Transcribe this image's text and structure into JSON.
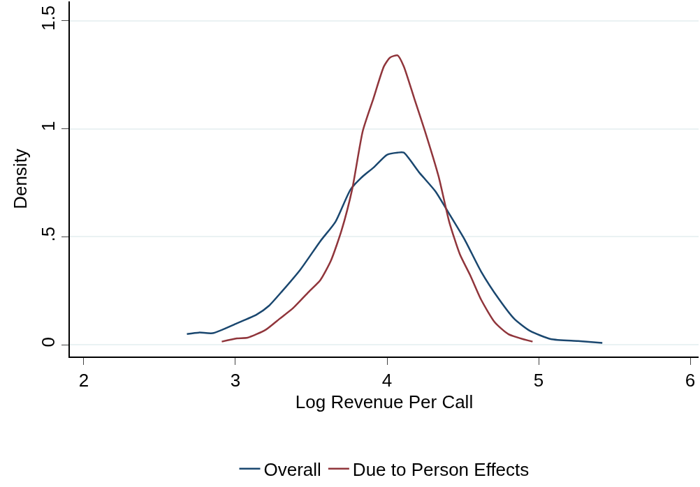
{
  "chart_data": {
    "type": "line",
    "xlabel": "Log Revenue Per Call",
    "ylabel": "Density",
    "xlim": [
      1.908,
      6.055
    ],
    "xticks": [
      2,
      3,
      4,
      5,
      6
    ],
    "ylim": [
      -0.054,
      1.59
    ],
    "yticks": [
      0,
      {
        "value": 0.5,
        "label": ".5"
      },
      1,
      1.5
    ],
    "grid": "y",
    "legend": "bottom",
    "line_style": "solid",
    "marker": "none",
    "series": [
      {
        "name": "Overall",
        "color": "#1a476f",
        "x": [
          2.68,
          2.76,
          2.85,
          3.01,
          3.14,
          3.22,
          3.31,
          3.43,
          3.56,
          3.66,
          3.76,
          3.84,
          3.91,
          4.0,
          4.07,
          4.11,
          4.21,
          4.32,
          4.39,
          4.51,
          4.62,
          4.74,
          4.84,
          4.94,
          5.08,
          5.26,
          5.42
        ],
        "values": [
          0.05,
          0.057,
          0.054,
          0.1,
          0.14,
          0.18,
          0.25,
          0.35,
          0.48,
          0.57,
          0.72,
          0.78,
          0.82,
          0.88,
          0.89,
          0.89,
          0.8,
          0.71,
          0.63,
          0.49,
          0.34,
          0.21,
          0.12,
          0.066,
          0.027,
          0.018,
          0.009
        ]
      },
      {
        "name": "Due to Person Effects",
        "color": "#90353b",
        "x": [
          2.91,
          3.01,
          3.08,
          3.2,
          3.29,
          3.38,
          3.49,
          3.56,
          3.63,
          3.7,
          3.77,
          3.84,
          3.91,
          3.98,
          4.02,
          4.07,
          4.11,
          4.18,
          4.25,
          4.34,
          4.41,
          4.48,
          4.55,
          4.62,
          4.71,
          4.8,
          4.96
        ],
        "values": [
          0.015,
          0.03,
          0.033,
          0.07,
          0.12,
          0.17,
          0.25,
          0.3,
          0.39,
          0.53,
          0.72,
          0.99,
          1.14,
          1.29,
          1.33,
          1.34,
          1.29,
          1.14,
          0.99,
          0.78,
          0.57,
          0.42,
          0.32,
          0.21,
          0.105,
          0.05,
          0.015
        ]
      }
    ]
  }
}
